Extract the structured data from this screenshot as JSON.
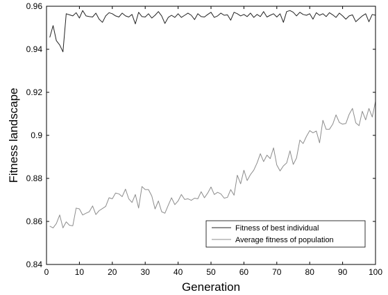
{
  "chart_data": {
    "type": "line",
    "title": "",
    "xlabel": "Generation",
    "ylabel": "Fitness landscape",
    "xlim": [
      0,
      100
    ],
    "ylim": [
      0.84,
      0.96
    ],
    "xticks": [
      "0",
      "10",
      "20",
      "30",
      "40",
      "50",
      "60",
      "70",
      "80",
      "90",
      "100"
    ],
    "yticks": [
      "0.84",
      "0.86",
      "0.88",
      "0.9",
      "0.92",
      "0.94",
      "0.96"
    ],
    "grid": false,
    "legend_position": "bottom-right",
    "colors": {
      "best": "#222222",
      "average": "#8c8c8c",
      "axis": "#000000"
    },
    "series": [
      {
        "name": "Fitness of best individual",
        "x": [
          1,
          2,
          3,
          4,
          5,
          6,
          7,
          8,
          9,
          10,
          11,
          12,
          13,
          14,
          15,
          16,
          17,
          18,
          19,
          20,
          21,
          22,
          23,
          24,
          25,
          26,
          27,
          28,
          29,
          30,
          31,
          32,
          33,
          34,
          35,
          36,
          37,
          38,
          39,
          40,
          41,
          42,
          43,
          44,
          45,
          46,
          47,
          48,
          49,
          50,
          51,
          52,
          53,
          54,
          55,
          56,
          57,
          58,
          59,
          60,
          61,
          62,
          63,
          64,
          65,
          66,
          67,
          68,
          69,
          70,
          71,
          72,
          73,
          74,
          75,
          76,
          77,
          78,
          79,
          80,
          81,
          82,
          83,
          84,
          85,
          86,
          87,
          88,
          89,
          90,
          91,
          92,
          93,
          94,
          95,
          96,
          97,
          98,
          99,
          100
        ],
        "values": [
          0.9455,
          0.951,
          0.944,
          0.942,
          0.9388,
          0.9565,
          0.956,
          0.9555,
          0.957,
          0.9545,
          0.958,
          0.9555,
          0.9552,
          0.955,
          0.9568,
          0.954,
          0.9525,
          0.9555,
          0.957,
          0.9565,
          0.9555,
          0.955,
          0.9568,
          0.9555,
          0.955,
          0.9562,
          0.9518,
          0.9572,
          0.9552,
          0.955,
          0.9565,
          0.9545,
          0.9558,
          0.9575,
          0.9555,
          0.952,
          0.9548,
          0.9558,
          0.9548,
          0.9565,
          0.9548,
          0.9558,
          0.9568,
          0.9558,
          0.9538,
          0.9565,
          0.9552,
          0.955,
          0.9562,
          0.9572,
          0.9548,
          0.9555,
          0.9568,
          0.9558,
          0.956,
          0.9535,
          0.9572,
          0.9565,
          0.9555,
          0.9562,
          0.9552,
          0.9568,
          0.9548,
          0.9562,
          0.9552,
          0.9575,
          0.955,
          0.9558,
          0.9565,
          0.955,
          0.9565,
          0.9525,
          0.9575,
          0.958,
          0.9572,
          0.9555,
          0.9572,
          0.9562,
          0.9558,
          0.9565,
          0.954,
          0.957,
          0.9558,
          0.9565,
          0.9552,
          0.957,
          0.956,
          0.9548,
          0.9568,
          0.9555,
          0.954,
          0.9555,
          0.956,
          0.9528,
          0.9542,
          0.9555,
          0.9565,
          0.9528,
          0.9562,
          0.9558
        ]
      },
      {
        "name": "Average fitness of population",
        "x": [
          1,
          2,
          3,
          4,
          5,
          6,
          7,
          8,
          9,
          10,
          11,
          12,
          13,
          14,
          15,
          16,
          17,
          18,
          19,
          20,
          21,
          22,
          23,
          24,
          25,
          26,
          27,
          28,
          29,
          30,
          31,
          32,
          33,
          34,
          35,
          36,
          37,
          38,
          39,
          40,
          41,
          42,
          43,
          44,
          45,
          46,
          47,
          48,
          49,
          50,
          51,
          52,
          53,
          54,
          55,
          56,
          57,
          58,
          59,
          60,
          61,
          62,
          63,
          64,
          65,
          66,
          67,
          68,
          69,
          70,
          71,
          72,
          73,
          74,
          75,
          76,
          77,
          78,
          79,
          80,
          81,
          82,
          83,
          84,
          85,
          86,
          87,
          88,
          89,
          90,
          91,
          92,
          93,
          94,
          95,
          96,
          97,
          98,
          99,
          100
        ],
        "values": [
          0.8578,
          0.857,
          0.859,
          0.863,
          0.857,
          0.8598,
          0.8582,
          0.858,
          0.8662,
          0.8658,
          0.863,
          0.8638,
          0.8645,
          0.8672,
          0.8632,
          0.865,
          0.866,
          0.867,
          0.871,
          0.8705,
          0.8732,
          0.8728,
          0.8715,
          0.875,
          0.8705,
          0.8688,
          0.8725,
          0.8662,
          0.8762,
          0.8748,
          0.8748,
          0.8718,
          0.8658,
          0.8695,
          0.8645,
          0.8638,
          0.8675,
          0.871,
          0.8678,
          0.8695,
          0.8725,
          0.8702,
          0.8705,
          0.8698,
          0.8708,
          0.8705,
          0.8738,
          0.871,
          0.8732,
          0.876,
          0.8725,
          0.8735,
          0.8728,
          0.8708,
          0.8712,
          0.8748,
          0.8722,
          0.8815,
          0.8775,
          0.8838,
          0.879,
          0.8818,
          0.8838,
          0.8872,
          0.8915,
          0.8878,
          0.8908,
          0.8892,
          0.8942,
          0.8862,
          0.8835,
          0.8858,
          0.8872,
          0.8928,
          0.8865,
          0.8895,
          0.8978,
          0.8962,
          0.8995,
          0.9022,
          0.9012,
          0.902,
          0.8965,
          0.907,
          0.9028,
          0.9028,
          0.9052,
          0.9095,
          0.906,
          0.9052,
          0.9055,
          0.9098,
          0.9125,
          0.9058,
          0.9045,
          0.9112,
          0.9072,
          0.9125,
          0.9085,
          0.9158
        ]
      }
    ]
  }
}
